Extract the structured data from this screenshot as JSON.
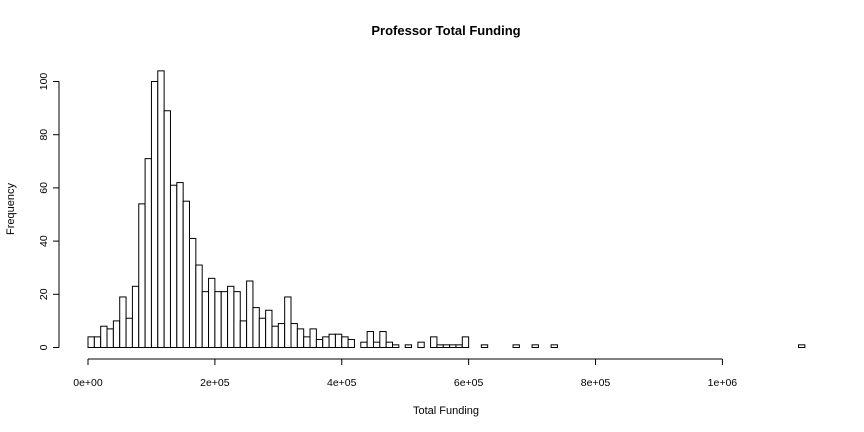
{
  "chart_data": {
    "type": "bar",
    "title": "Professor Total Funding",
    "xlabel": "Total Funding",
    "ylabel": "Frequency",
    "bin_width": 10000,
    "bin_start": 0,
    "xlim": [
      0,
      1130000
    ],
    "ylim": [
      0,
      104
    ],
    "x_ticks": [
      {
        "value": 0,
        "label": "0e+00"
      },
      {
        "value": 200000,
        "label": "2e+05"
      },
      {
        "value": 400000,
        "label": "4e+05"
      },
      {
        "value": 600000,
        "label": "6e+05"
      },
      {
        "value": 800000,
        "label": "8e+05"
      },
      {
        "value": 1000000,
        "label": "1e+06"
      }
    ],
    "y_ticks": [
      {
        "value": 0,
        "label": "0"
      },
      {
        "value": 20,
        "label": "20"
      },
      {
        "value": 40,
        "label": "40"
      },
      {
        "value": 60,
        "label": "60"
      },
      {
        "value": 80,
        "label": "80"
      },
      {
        "value": 100,
        "label": "100"
      }
    ],
    "counts": [
      4,
      4,
      8,
      7,
      10,
      19,
      11,
      23,
      54,
      71,
      100,
      104,
      89,
      61,
      62,
      55,
      41,
      31,
      21,
      26,
      21,
      21,
      23,
      21,
      10,
      25,
      15,
      11,
      14,
      8,
      9,
      19,
      9,
      7,
      4,
      7,
      3,
      4,
      5,
      5,
      4,
      3,
      0,
      2,
      6,
      2,
      6,
      2,
      1,
      0,
      1,
      0,
      2,
      0,
      4,
      1,
      1,
      1,
      1,
      4,
      0,
      0,
      1,
      0,
      0,
      0,
      0,
      1,
      0,
      0,
      1,
      0,
      0,
      1,
      0,
      0,
      0,
      0,
      0,
      0,
      0,
      0,
      0,
      0,
      0,
      0,
      0,
      0,
      0,
      0,
      0,
      0,
      0,
      0,
      0,
      0,
      0,
      0,
      0,
      0,
      0,
      0,
      0,
      0,
      0,
      0,
      0,
      0,
      0,
      0,
      0,
      0,
      1
    ]
  }
}
